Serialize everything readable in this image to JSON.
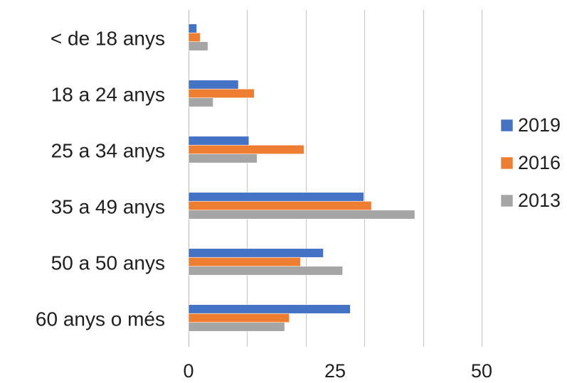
{
  "chart_data": {
    "type": "bar",
    "orientation": "horizontal",
    "categories": [
      "< de 18 anys",
      "18 a 24 anys",
      "25 a 34 anys",
      "35 a 49 anys",
      "50 a 50 anys",
      "60 anys o més"
    ],
    "series": [
      {
        "name": "2019",
        "color": "#4472C4",
        "values": [
          1.4,
          8.5,
          10.3,
          29.9,
          23.0,
          27.6
        ]
      },
      {
        "name": "2016",
        "color": "#ED7D31",
        "values": [
          2.0,
          11.2,
          19.7,
          31.2,
          19.1,
          17.2
        ]
      },
      {
        "name": "2013",
        "color": "#A5A5A5",
        "values": [
          3.3,
          4.2,
          11.7,
          38.6,
          26.3,
          16.4
        ]
      }
    ],
    "xlim": [
      0,
      50
    ],
    "xticks": [
      0,
      25,
      50
    ],
    "gridlines": [
      0,
      10,
      20,
      30,
      40,
      50
    ],
    "grid": true,
    "legend_position": "right",
    "title": "",
    "xlabel": "",
    "ylabel": ""
  }
}
